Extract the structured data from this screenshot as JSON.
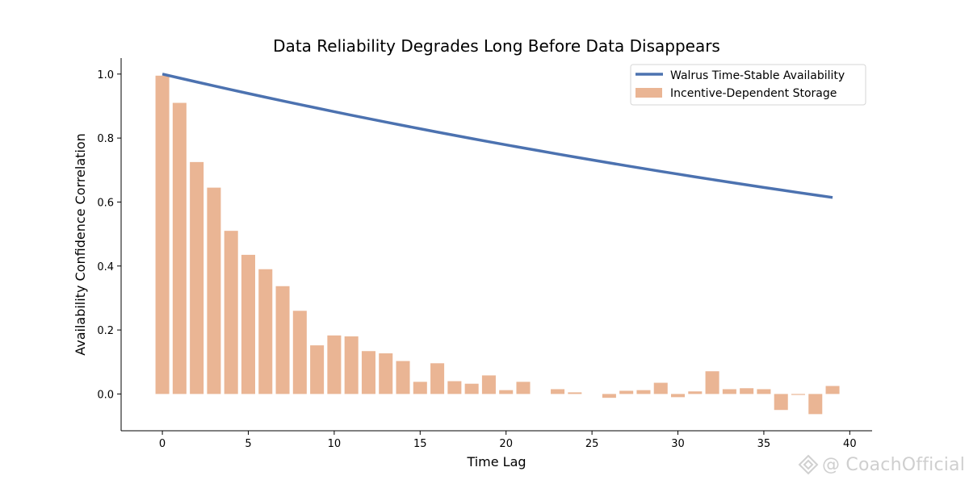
{
  "chart_data": {
    "type": "bar+line",
    "title": "Data Reliability Degrades Long Before Data Disappears",
    "xlabel": "Time Lag",
    "ylabel": "Availability Confidence Correlation",
    "xlim": [
      -2.4,
      41.3
    ],
    "ylim": [
      -0.115,
      1.05
    ],
    "xticks": [
      0,
      5,
      10,
      15,
      20,
      25,
      30,
      35,
      40
    ],
    "yticks": [
      0.0,
      0.2,
      0.4,
      0.6,
      0.8,
      1.0
    ],
    "xtick_labels": [
      "0",
      "5",
      "10",
      "15",
      "20",
      "25",
      "30",
      "35",
      "40"
    ],
    "ytick_labels": [
      "0.0",
      "0.2",
      "0.4",
      "0.6",
      "0.8",
      "1.0"
    ],
    "grid": false,
    "legend_position": "top-right",
    "x": [
      0,
      1,
      2,
      3,
      4,
      5,
      6,
      7,
      8,
      9,
      10,
      11,
      12,
      13,
      14,
      15,
      16,
      17,
      18,
      19,
      20,
      21,
      22,
      23,
      24,
      25,
      26,
      27,
      28,
      29,
      30,
      31,
      32,
      33,
      34,
      35,
      36,
      37,
      38,
      39
    ],
    "series": [
      {
        "name": "Walrus Time-Stable Availability",
        "kind": "line",
        "color": "#4c72b0",
        "values": [
          1.0,
          0.9876,
          0.9753,
          0.9632,
          0.9512,
          0.9394,
          0.9277,
          0.9162,
          0.9048,
          0.8936,
          0.8825,
          0.8715,
          0.8607,
          0.85,
          0.8395,
          0.829,
          0.8187,
          0.8086,
          0.7985,
          0.7886,
          0.7788,
          0.7691,
          0.7596,
          0.7501,
          0.7408,
          0.7316,
          0.7225,
          0.7135,
          0.7047,
          0.6959,
          0.6873,
          0.6787,
          0.6703,
          0.662,
          0.6538,
          0.6456,
          0.6376,
          0.6297,
          0.6219,
          0.6142
        ]
      },
      {
        "name": "Incentive-Dependent Storage",
        "kind": "bar",
        "color": "#eab594",
        "values": [
          0.995,
          0.91,
          0.725,
          0.645,
          0.51,
          0.435,
          0.39,
          0.337,
          0.26,
          0.152,
          0.183,
          0.18,
          0.134,
          0.127,
          0.103,
          0.038,
          0.096,
          0.04,
          0.032,
          0.058,
          0.012,
          0.038,
          0.0,
          0.015,
          0.005,
          0.0,
          -0.012,
          0.01,
          0.012,
          0.035,
          -0.01,
          0.008,
          0.071,
          0.015,
          0.018,
          0.015,
          -0.05,
          -0.003,
          -0.063,
          0.025
        ]
      }
    ]
  },
  "watermark": {
    "text": "@ CoachOfficial",
    "icon": "watermark-logo-icon"
  }
}
